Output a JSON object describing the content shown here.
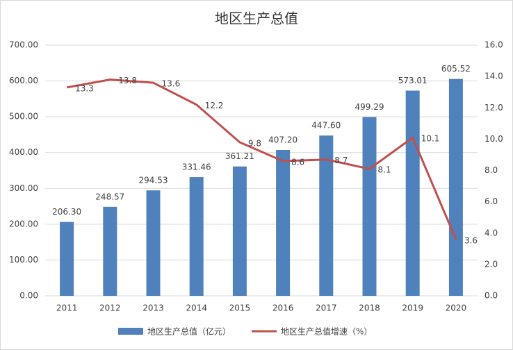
{
  "chart_data": {
    "type": "bar",
    "title": "地区生产总值",
    "categories": [
      "2011",
      "2012",
      "2013",
      "2014",
      "2015",
      "2016",
      "2017",
      "2018",
      "2019",
      "2020"
    ],
    "series": [
      {
        "name": "地区生产总值（亿元）",
        "type": "bar",
        "color": "#4f81bd",
        "values": [
          206.3,
          248.57,
          294.53,
          331.46,
          361.21,
          407.2,
          447.6,
          499.29,
          573.01,
          605.52
        ],
        "value_labels": [
          "206.30",
          "248.57",
          "294.53",
          "331.46",
          "361.21",
          "407.20",
          "447.60",
          "499.29",
          "573.01",
          "605.52"
        ]
      },
      {
        "name": "地区生产总值增速（%）",
        "type": "line",
        "axis": "y2",
        "color": "#c0504d",
        "values": [
          13.3,
          13.8,
          13.6,
          12.2,
          9.8,
          8.6,
          8.7,
          8.1,
          10.1,
          3.6
        ]
      }
    ],
    "ylim": [
      0,
      700
    ],
    "yticks": [
      {
        "value": 0,
        "label": "0.00"
      },
      {
        "value": 100,
        "label": "100.00"
      },
      {
        "value": 200,
        "label": "200.00"
      },
      {
        "value": 300,
        "label": "300.00"
      },
      {
        "value": 400,
        "label": "400.00"
      },
      {
        "value": 500,
        "label": "500.00"
      },
      {
        "value": 600,
        "label": "600.00"
      },
      {
        "value": 700,
        "label": "700.00"
      }
    ],
    "y2lim": [
      0,
      16
    ],
    "y2ticks": [
      {
        "value": 0,
        "label": "0.0"
      },
      {
        "value": 2,
        "label": "2.0"
      },
      {
        "value": 4,
        "label": "4.0"
      },
      {
        "value": 6,
        "label": "6.0"
      },
      {
        "value": 8,
        "label": "8.0"
      },
      {
        "value": 10,
        "label": "10.0"
      },
      {
        "value": 12,
        "label": "12.0"
      },
      {
        "value": 14,
        "label": "14.0"
      },
      {
        "value": 16,
        "label": "16.0"
      }
    ],
    "grid": true,
    "legend": "bottom"
  }
}
